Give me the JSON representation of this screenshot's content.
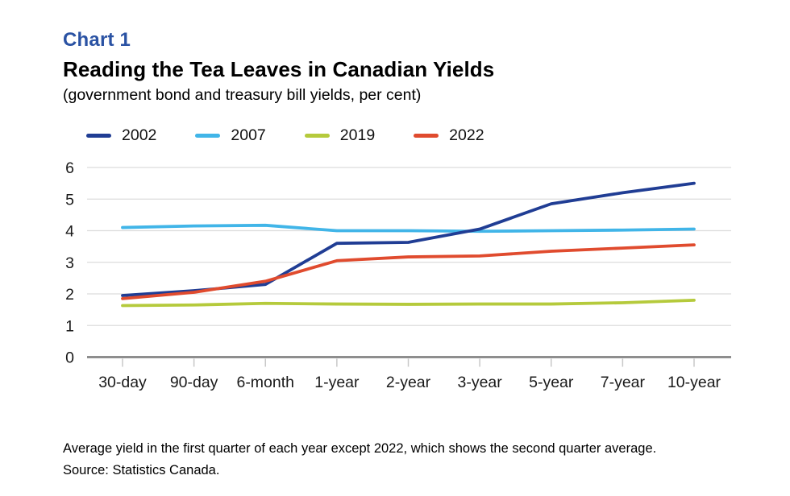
{
  "page": {
    "kicker": "Chart 1",
    "title": "Reading the Tea Leaves in Canadian Yields",
    "subtitle": "(government bond and treasury bill yields, per cent)",
    "footnote": "Average yield in the first quarter of each year except 2022, which shows the second quarter average.",
    "source": "Source: Statistics Canada."
  },
  "colors": {
    "accent": "#2a52a3",
    "grid": "#dcdcdc",
    "baseline": "#8e8e8e",
    "tick": "#c8c8c8",
    "axis_text": "#1a1a1a"
  },
  "chart_data": {
    "type": "line",
    "categories": [
      "30-day",
      "90-day",
      "6-month",
      "1-year",
      "2-year",
      "3-year",
      "5-year",
      "7-year",
      "10-year"
    ],
    "series": [
      {
        "name": "2002",
        "color": "#203d94",
        "values": [
          1.95,
          2.1,
          2.3,
          3.6,
          3.63,
          4.05,
          4.85,
          5.2,
          5.5
        ]
      },
      {
        "name": "2007",
        "color": "#41b5e8",
        "values": [
          4.1,
          4.15,
          4.17,
          4.0,
          4.0,
          3.98,
          4.0,
          4.02,
          4.05
        ]
      },
      {
        "name": "2019",
        "color": "#b5ca3c",
        "values": [
          1.63,
          1.65,
          1.7,
          1.68,
          1.67,
          1.68,
          1.68,
          1.72,
          1.8
        ]
      },
      {
        "name": "2022",
        "color": "#e04b2e",
        "values": [
          1.85,
          2.05,
          2.4,
          3.05,
          3.17,
          3.2,
          3.35,
          3.45,
          3.55
        ]
      }
    ],
    "draw_order": [
      1,
      2,
      0,
      3
    ],
    "title": "Reading the Tea Leaves in Canadian Yields",
    "subtitle": "(government bond and treasury bill yields, per cent)",
    "xlabel": "",
    "ylabel": "per cent",
    "ylim": [
      0,
      6
    ],
    "yticks": [
      0,
      1,
      2,
      3,
      4,
      5,
      6
    ],
    "grid": true,
    "legend_position": "top"
  }
}
